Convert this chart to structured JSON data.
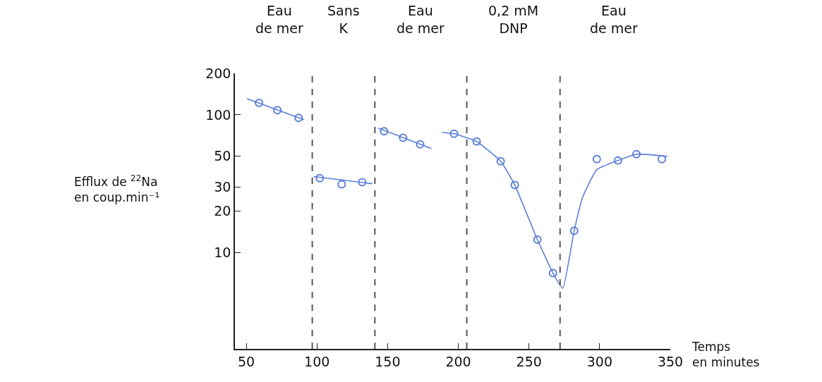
{
  "chart_data": {
    "type": "scatter",
    "xlabel": "Temps\nen minutes",
    "ylabel": "Efflux de $^{22}$Na\nen coup.min⁻¹",
    "log": "y",
    "xlim": [
      42,
      350
    ],
    "xticks": [
      50,
      100,
      150,
      200,
      250,
      300,
      350
    ],
    "ylim": [
      2,
      200
    ],
    "yticks": [
      10,
      20,
      30,
      50,
      100,
      200
    ],
    "series": [
      {
        "color": "#5b7fd6",
        "marker": "circle",
        "x": [
          59,
          72,
          87,
          102,
          117.5,
          132,
          147.5,
          161,
          173,
          197,
          213,
          230,
          240,
          256,
          267,
          282,
          298,
          313,
          326,
          344
        ],
        "values": [
          122,
          108,
          95,
          34.7,
          31.3,
          32.4,
          76,
          68,
          61,
          72.8,
          64,
          46,
          30.9,
          12.4,
          7.1,
          14.4,
          47.7,
          46.6,
          51.8,
          47.7
        ]
      },
      {
        "type": "line",
        "color": "#5b7fd6",
        "marker": "none",
        "line_style": "solid",
        "x": [
          50.5,
          91,
          93,
          97.7,
          139.3,
          140,
          143.4,
          181,
          185,
          188.6,
          197,
          213,
          230,
          240,
          256,
          267,
          273.9,
          282,
          288,
          298,
          313,
          326,
          348
        ],
        "values": [
          131,
          92,
          null,
          35.6,
          31.6,
          null,
          80,
          56.9,
          null,
          74.4,
          72.8,
          64,
          46,
          30.9,
          12.4,
          7.1,
          5.5,
          14.4,
          25.3,
          40,
          46.6,
          51.8,
          50
        ]
      }
    ],
    "ref_lines": [
      {
        "axis": "x",
        "value": 96.7,
        "color": "#555555",
        "line_style": "dashed"
      },
      {
        "axis": "x",
        "value": 141,
        "color": "#555555",
        "line_style": "dashed"
      },
      {
        "axis": "x",
        "value": 206,
        "color": "#555555",
        "line_style": "dashed"
      },
      {
        "axis": "x",
        "value": 272,
        "color": "#555555",
        "line_style": "dashed"
      }
    ],
    "annotations": [
      "Eau\nde mer",
      "Sans\nK",
      "Eau\nde mer",
      "0,2 mM\nDNP",
      "Eau\nde mer"
    ]
  }
}
